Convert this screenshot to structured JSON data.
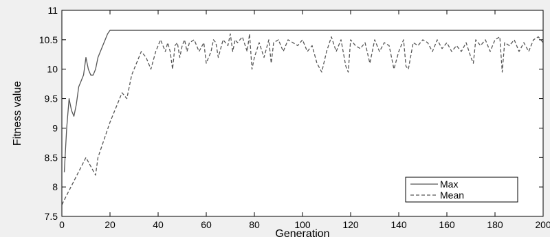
{
  "chart_data": {
    "type": "line",
    "title": "",
    "xlabel": "Generation",
    "ylabel": "Fitness value",
    "xlim": [
      0,
      200
    ],
    "ylim": [
      7.5,
      11
    ],
    "xticks": [
      0,
      20,
      40,
      60,
      80,
      100,
      120,
      140,
      160,
      180,
      200
    ],
    "xtick_labels": [
      "0",
      "20",
      "40",
      "60",
      "80",
      "100",
      "120",
      "140",
      "160",
      "180",
      "200"
    ],
    "yticks": [
      7.5,
      8,
      8.5,
      9,
      9.5,
      10,
      10.5,
      11
    ],
    "ytick_labels": [
      "7.5",
      "8",
      "8.5",
      "9",
      "9.5",
      "10",
      "10.5",
      "11"
    ],
    "grid": false,
    "legend": {
      "position": "bottom-right"
    },
    "series": [
      {
        "name": "Max",
        "style": "solid",
        "color": "#555555",
        "x": [
          1,
          2,
          3,
          4,
          5,
          6,
          7,
          8,
          9,
          10,
          11,
          12,
          13,
          14,
          15,
          16,
          17,
          18,
          19,
          20,
          200
        ],
        "y": [
          8.25,
          9.0,
          9.5,
          9.3,
          9.2,
          9.4,
          9.7,
          9.8,
          9.9,
          10.2,
          10.0,
          9.9,
          9.9,
          10.0,
          10.2,
          10.3,
          10.4,
          10.5,
          10.6,
          10.66,
          10.66
        ]
      },
      {
        "name": "Mean",
        "style": "dashed",
        "color": "#555555",
        "x": [
          0,
          5,
          10,
          14,
          15,
          20,
          25,
          27,
          29,
          31,
          33,
          35,
          37,
          39,
          41,
          43,
          44,
          45,
          46,
          47,
          48,
          49,
          50,
          51,
          52,
          53,
          55,
          57,
          59,
          60,
          62,
          63,
          64,
          65,
          67,
          69,
          70,
          71,
          72,
          73,
          75,
          77,
          78,
          79,
          80,
          82,
          84,
          86,
          87,
          88,
          90,
          92,
          94,
          96,
          98,
          100,
          102,
          104,
          106,
          108,
          110,
          112,
          114,
          116,
          118,
          119,
          120,
          122,
          124,
          126,
          128,
          130,
          132,
          134,
          136,
          138,
          140,
          142,
          143,
          144,
          146,
          148,
          150,
          152,
          154,
          156,
          158,
          160,
          162,
          164,
          166,
          168,
          170,
          171,
          172,
          174,
          176,
          178,
          180,
          182,
          183,
          184,
          186,
          188,
          190,
          192,
          194,
          196,
          198,
          200
        ],
        "y": [
          7.7,
          8.1,
          8.5,
          8.2,
          8.5,
          9.1,
          9.6,
          9.5,
          9.9,
          10.1,
          10.3,
          10.2,
          10.0,
          10.3,
          10.5,
          10.3,
          10.45,
          10.3,
          10.0,
          10.4,
          10.45,
          10.2,
          10.4,
          10.5,
          10.3,
          10.45,
          10.5,
          10.3,
          10.45,
          10.1,
          10.3,
          10.5,
          10.45,
          10.2,
          10.5,
          10.4,
          10.6,
          10.3,
          10.5,
          10.45,
          10.55,
          10.3,
          10.6,
          10.0,
          10.2,
          10.45,
          10.2,
          10.5,
          10.1,
          10.45,
          10.5,
          10.3,
          10.5,
          10.45,
          10.4,
          10.5,
          10.3,
          10.4,
          10.1,
          9.95,
          10.3,
          10.55,
          10.3,
          10.5,
          10.05,
          9.95,
          10.5,
          10.4,
          10.35,
          10.45,
          10.1,
          10.5,
          10.3,
          10.45,
          10.4,
          10.0,
          10.3,
          10.5,
          10.05,
          10.0,
          10.45,
          10.4,
          10.5,
          10.45,
          10.3,
          10.5,
          10.35,
          10.45,
          10.3,
          10.4,
          10.3,
          10.45,
          10.2,
          10.1,
          10.5,
          10.4,
          10.5,
          10.3,
          10.5,
          10.55,
          9.95,
          10.45,
          10.4,
          10.5,
          10.3,
          10.45,
          10.3,
          10.5,
          10.55,
          10.45
        ]
      }
    ]
  }
}
